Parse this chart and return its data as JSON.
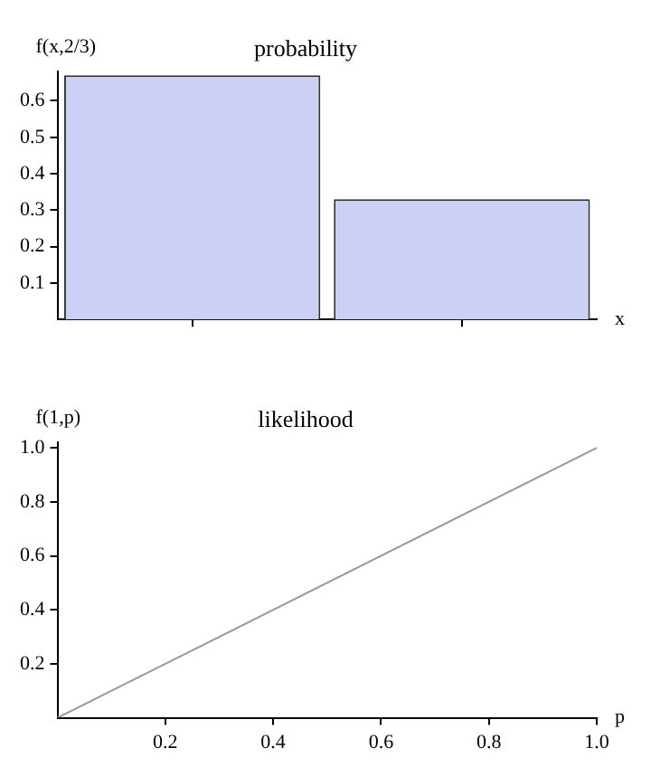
{
  "chart_data": [
    {
      "type": "bar",
      "title": "probability",
      "xlabel": "x",
      "ylabel": "f(x,2/3)",
      "categories": [
        null,
        null
      ],
      "series": [
        {
          "color": "#ccd0f4",
          "values": [
            0.67,
            0.33
          ]
        }
      ],
      "ylim": [
        0,
        0.68
      ],
      "yticks": [
        0.1,
        0.2,
        0.3,
        0.4,
        0.5,
        0.6
      ],
      "grid": false,
      "legend": false
    },
    {
      "type": "line",
      "title": "likelihood",
      "xlabel": "p",
      "ylabel": "f(1,p)",
      "x": [
        0,
        1
      ],
      "series": [
        {
          "color": "#999999",
          "values": [
            0,
            1
          ]
        }
      ],
      "xlim": [
        0,
        1
      ],
      "xticks": [
        0.2,
        0.4,
        0.6,
        0.8,
        {
          "value": 1,
          "label": "1.0"
        }
      ],
      "ylim": [
        0,
        1.02
      ],
      "yticks": [
        0.2,
        0.4,
        0.6,
        0.8,
        {
          "value": 1,
          "label": "1.0"
        }
      ],
      "grid": false,
      "legend": false,
      "marker": "none"
    }
  ]
}
